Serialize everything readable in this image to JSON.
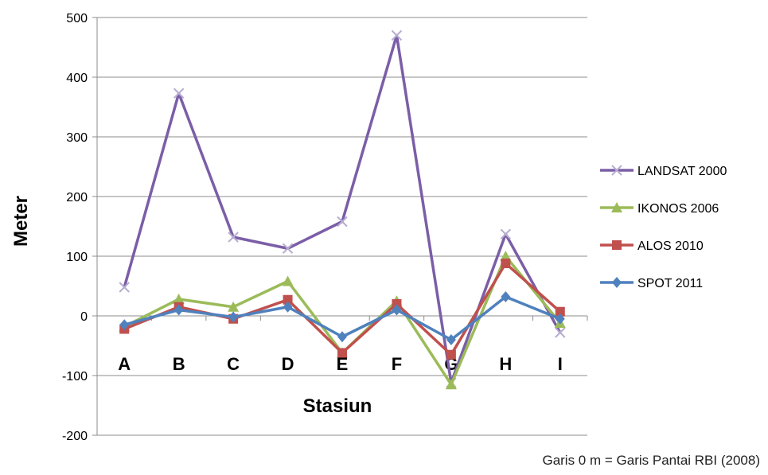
{
  "chart_data": {
    "type": "line",
    "title": "",
    "xlabel": "Stasiun",
    "ylabel": "Meter",
    "categories": [
      "A",
      "B",
      "C",
      "D",
      "E",
      "F",
      "G",
      "H",
      "I"
    ],
    "ylim": [
      -200,
      500
    ],
    "yticks": [
      -200,
      -100,
      0,
      100,
      200,
      300,
      400,
      500
    ],
    "grid": true,
    "legend_position": "right",
    "series": [
      {
        "name": "LANDSAT 2000",
        "color": "#7b5ea7",
        "marker": "x",
        "values": [
          48,
          373,
          132,
          113,
          158,
          470,
          -112,
          137,
          -28
        ]
      },
      {
        "name": "IKONOS 2006",
        "color": "#9bbb59",
        "marker": "triangle",
        "values": [
          -18,
          28,
          15,
          58,
          -62,
          25,
          -115,
          100,
          -12
        ]
      },
      {
        "name": "ALOS 2010",
        "color": "#c0504d",
        "marker": "square",
        "values": [
          -22,
          15,
          -5,
          27,
          -62,
          20,
          -65,
          88,
          7
        ]
      },
      {
        "name": "SPOT 2011",
        "color": "#4f81bd",
        "marker": "diamond",
        "values": [
          -15,
          10,
          -2,
          15,
          -35,
          10,
          -40,
          32,
          -5
        ]
      }
    ]
  },
  "footnote": "Garis 0 m = Garis Pantai RBI (2008)"
}
